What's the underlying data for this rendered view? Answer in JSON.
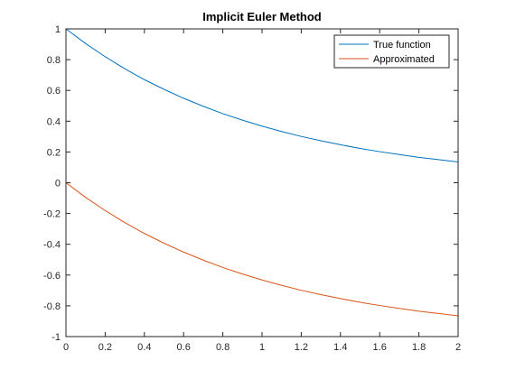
{
  "chart_data": {
    "type": "line",
    "title": "Implicit Euler Method",
    "xlabel": "",
    "ylabel": "",
    "xlim": [
      0,
      2
    ],
    "ylim": [
      -1,
      1
    ],
    "grid": false,
    "legend_position": "top-right",
    "x_ticks": [
      "0",
      "0.2",
      "0.4",
      "0.6",
      "0.8",
      "1",
      "1.2",
      "1.4",
      "1.6",
      "1.8",
      "2"
    ],
    "y_ticks": [
      "1",
      "0.8",
      "0.6",
      "0.4",
      "0.2",
      "0",
      "-0.2",
      "-0.4",
      "-0.6",
      "-0.8",
      "-1"
    ],
    "x": [
      0,
      0.1,
      0.2,
      0.3,
      0.4,
      0.5,
      0.6,
      0.7,
      0.8,
      0.9,
      1.0,
      1.1,
      1.2,
      1.3,
      1.4,
      1.5,
      1.6,
      1.7,
      1.8,
      1.9,
      2.0
    ],
    "series": [
      {
        "name": "True function",
        "color": "#0072BD",
        "values": [
          1.0,
          0.905,
          0.819,
          0.741,
          0.67,
          0.607,
          0.549,
          0.497,
          0.449,
          0.407,
          0.368,
          0.333,
          0.301,
          0.273,
          0.247,
          0.223,
          0.202,
          0.183,
          0.165,
          0.15,
          0.135
        ]
      },
      {
        "name": "Approximated",
        "color": "#D95319",
        "values": [
          0.0,
          -0.095,
          -0.181,
          -0.259,
          -0.33,
          -0.393,
          -0.451,
          -0.503,
          -0.551,
          -0.593,
          -0.632,
          -0.667,
          -0.699,
          -0.727,
          -0.753,
          -0.777,
          -0.798,
          -0.817,
          -0.835,
          -0.85,
          -0.865
        ]
      }
    ]
  }
}
